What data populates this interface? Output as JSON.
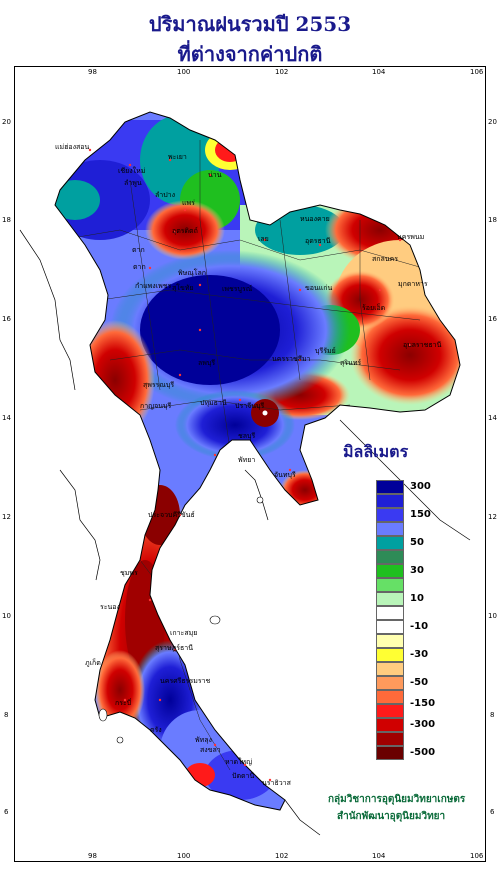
{
  "title_line1": "ปริมาณฝนรวมปี  2553",
  "title_line2": "ที่ต่างจากค่าปกติ",
  "axes": {
    "x_ticks": [
      "98",
      "100",
      "102",
      "104",
      "106"
    ],
    "y_ticks": [
      "20",
      "18",
      "16",
      "14",
      "12",
      "10",
      "8",
      "6"
    ]
  },
  "legend": {
    "title": "มิลลิเมตร",
    "colors": [
      "#000099",
      "#1f1fd6",
      "#3a3af2",
      "#6a7cff",
      "#00a0a0",
      "#2e8b57",
      "#1fbf1f",
      "#66e066",
      "#b9f5b9",
      "#ffffff",
      "#ffffff",
      "#ffffb0",
      "#ffff33",
      "#ffcc80",
      "#ff9a5c",
      "#ff6a3a",
      "#ff1a1a",
      "#d00000",
      "#a00000",
      "#6a0000"
    ],
    "labels": [
      {
        "text": "300",
        "slot": 0.5
      },
      {
        "text": "150",
        "slot": 2.5
      },
      {
        "text": "50",
        "slot": 4.5
      },
      {
        "text": "30",
        "slot": 6.5
      },
      {
        "text": "10",
        "slot": 8.5
      },
      {
        "text": "-10",
        "slot": 10.5
      },
      {
        "text": "-30",
        "slot": 12.5
      },
      {
        "text": "-50",
        "slot": 14.5
      },
      {
        "text": "-150",
        "slot": 16
      },
      {
        "text": "-300",
        "slot": 17.5
      },
      {
        "text": "-500",
        "slot": 19.5
      }
    ]
  },
  "places": [
    {
      "text": "แม่ฮ่องสอน"
    },
    {
      "text": "เชียงใหม่"
    },
    {
      "text": "ลำพูน"
    },
    {
      "text": "ลำปาง"
    },
    {
      "text": "พะเยา"
    },
    {
      "text": "น่าน"
    },
    {
      "text": "แพร่"
    },
    {
      "text": "อุตรดิตถ์"
    },
    {
      "text": "เลย"
    },
    {
      "text": "หนองคาย"
    },
    {
      "text": "อุดรธานี"
    },
    {
      "text": "สกลนคร"
    },
    {
      "text": "นครพนม"
    },
    {
      "text": "ตาก"
    },
    {
      "text": "พิษณุโลก"
    },
    {
      "text": "สุโขทัย"
    },
    {
      "text": "กำแพงเพชร"
    },
    {
      "text": "เพชรบูรณ์"
    },
    {
      "text": "ขอนแก่น"
    },
    {
      "text": "มุกดาหาร"
    },
    {
      "text": "ร้อยเอ็ด"
    },
    {
      "text": "อุบลราชธานี"
    },
    {
      "text": "นครราชสีมา"
    },
    {
      "text": "บุรีรัมย์"
    },
    {
      "text": "สุรินทร์"
    },
    {
      "text": "ลพบุรี"
    },
    {
      "text": "สุพรรณบุรี"
    },
    {
      "text": "กาญจนบุรี"
    },
    {
      "text": "ปทุมธานี"
    },
    {
      "text": "ปราจีนบุรี"
    },
    {
      "text": "ชลบุรี"
    },
    {
      "text": "พัทยา"
    },
    {
      "text": "จันทบุรี"
    },
    {
      "text": "ประจวบคีรีขันธ์"
    },
    {
      "text": "ชุมพร"
    },
    {
      "text": "ระนอง"
    },
    {
      "text": "เกาะสมุย"
    },
    {
      "text": "สุราษฎร์ธานี"
    },
    {
      "text": "นครศรีธรรมราช"
    },
    {
      "text": "ภูเก็ต"
    },
    {
      "text": "กระบี่"
    },
    {
      "text": "ตรัง"
    },
    {
      "text": "พัทลุง"
    },
    {
      "text": "สงขลา"
    },
    {
      "text": "หาดใหญ่"
    },
    {
      "text": "ปัตตานี"
    },
    {
      "text": "นราธิวาส"
    },
    {
      "text": "ตาก"
    }
  ],
  "credit_line1": "กลุ่มวิชาการอุตุนิยมวิทยาเกษตร",
  "credit_line2": "สำนักพัฒนาอุตุนิยมวิทยา"
}
